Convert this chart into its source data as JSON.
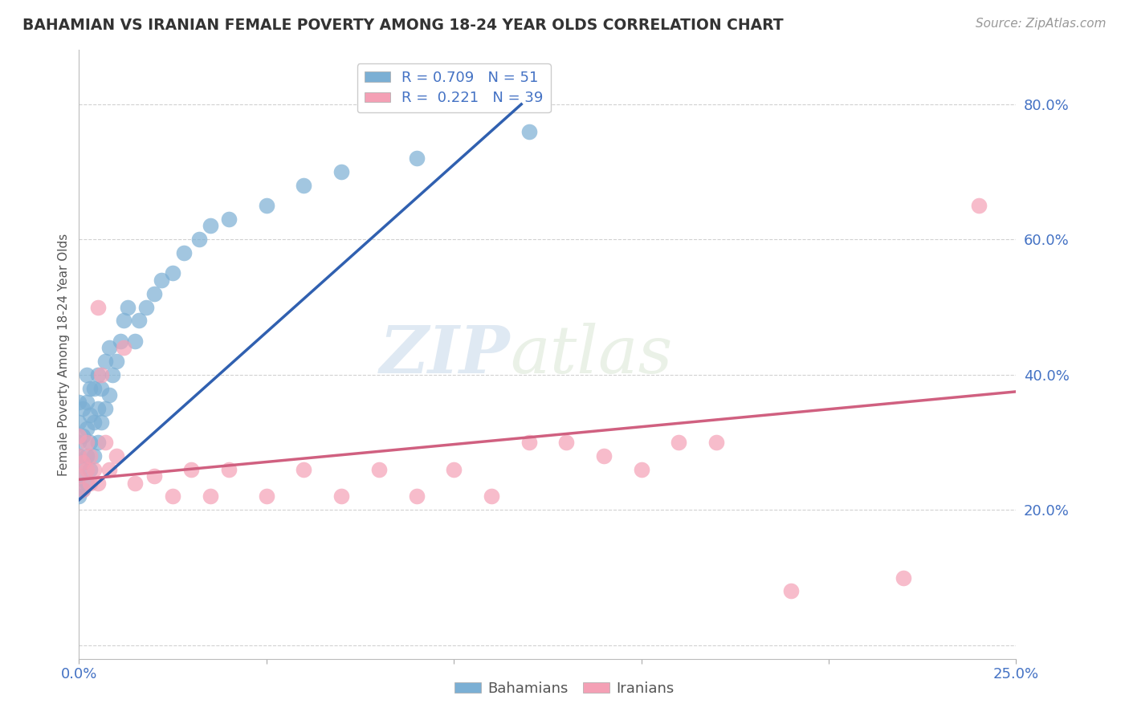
{
  "title": "BAHAMIAN VS IRANIAN FEMALE POVERTY AMONG 18-24 YEAR OLDS CORRELATION CHART",
  "source": "Source: ZipAtlas.com",
  "ylabel": "Female Poverty Among 18-24 Year Olds",
  "xlim": [
    0.0,
    0.25
  ],
  "ylim": [
    -0.02,
    0.88
  ],
  "axis_color": "#4472c4",
  "background_color": "#ffffff",
  "watermark_ZIP": "ZIP",
  "watermark_atlas": "atlas",
  "legend_R1": "0.709",
  "legend_N1": "51",
  "legend_R2": "0.221",
  "legend_N2": "39",
  "bahamian_color": "#7bafd4",
  "iranian_color": "#f4a0b5",
  "bahamian_line_color": "#3060b0",
  "iranian_line_color": "#d06080",
  "bah_x": [
    0.0,
    0.0,
    0.0,
    0.0,
    0.0,
    0.0,
    0.001,
    0.001,
    0.001,
    0.001,
    0.002,
    0.002,
    0.002,
    0.002,
    0.002,
    0.003,
    0.003,
    0.003,
    0.003,
    0.004,
    0.004,
    0.004,
    0.005,
    0.005,
    0.005,
    0.006,
    0.006,
    0.007,
    0.007,
    0.008,
    0.008,
    0.009,
    0.01,
    0.011,
    0.012,
    0.013,
    0.015,
    0.016,
    0.018,
    0.02,
    0.022,
    0.025,
    0.028,
    0.032,
    0.035,
    0.04,
    0.05,
    0.06,
    0.07,
    0.09,
    0.12
  ],
  "bah_y": [
    0.22,
    0.25,
    0.28,
    0.3,
    0.33,
    0.36,
    0.23,
    0.27,
    0.31,
    0.35,
    0.24,
    0.28,
    0.32,
    0.36,
    0.4,
    0.26,
    0.3,
    0.34,
    0.38,
    0.28,
    0.33,
    0.38,
    0.3,
    0.35,
    0.4,
    0.33,
    0.38,
    0.35,
    0.42,
    0.37,
    0.44,
    0.4,
    0.42,
    0.45,
    0.48,
    0.5,
    0.45,
    0.48,
    0.5,
    0.52,
    0.54,
    0.55,
    0.58,
    0.6,
    0.62,
    0.63,
    0.65,
    0.68,
    0.7,
    0.72,
    0.76
  ],
  "iran_x": [
    0.0,
    0.0,
    0.0,
    0.001,
    0.001,
    0.002,
    0.002,
    0.003,
    0.003,
    0.004,
    0.005,
    0.005,
    0.006,
    0.007,
    0.008,
    0.01,
    0.012,
    0.015,
    0.02,
    0.025,
    0.03,
    0.035,
    0.04,
    0.05,
    0.06,
    0.07,
    0.08,
    0.09,
    0.1,
    0.11,
    0.12,
    0.13,
    0.14,
    0.15,
    0.16,
    0.17,
    0.19,
    0.22,
    0.24
  ],
  "iran_y": [
    0.25,
    0.28,
    0.31,
    0.23,
    0.27,
    0.26,
    0.3,
    0.24,
    0.28,
    0.26,
    0.5,
    0.24,
    0.4,
    0.3,
    0.26,
    0.28,
    0.44,
    0.24,
    0.25,
    0.22,
    0.26,
    0.22,
    0.26,
    0.22,
    0.26,
    0.22,
    0.26,
    0.22,
    0.26,
    0.22,
    0.3,
    0.3,
    0.28,
    0.26,
    0.3,
    0.3,
    0.08,
    0.1,
    0.65
  ],
  "bah_line_x": [
    0.0,
    0.118
  ],
  "bah_line_y": [
    0.215,
    0.8
  ],
  "iran_line_x": [
    0.0,
    0.25
  ],
  "iran_line_y": [
    0.245,
    0.375
  ]
}
